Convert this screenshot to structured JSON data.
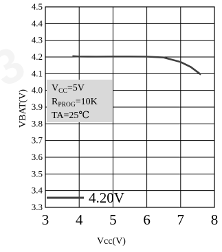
{
  "chart_data": {
    "type": "line",
    "xlabel": "Vcc(V)",
    "ylabel": "VBAT(V)",
    "xlim": [
      3,
      8
    ],
    "ylim": [
      3.3,
      4.5
    ],
    "x_ticks": [
      "3",
      "4",
      "5",
      "6",
      "7",
      "8"
    ],
    "y_ticks": [
      "3.3",
      "3.4",
      "3.5",
      "3.6",
      "3.7",
      "3.8",
      "3.9",
      "4.0",
      "4.1",
      "4.2",
      "4.3",
      "4.4",
      "4.5"
    ],
    "grid": true,
    "series": [
      {
        "name": "4.20V",
        "color": "#404040",
        "x": [
          3.8,
          4.0,
          4.5,
          5.0,
          5.5,
          6.0,
          6.5,
          7.0,
          7.3,
          7.6
        ],
        "y": [
          4.205,
          4.203,
          4.202,
          4.203,
          4.203,
          4.202,
          4.197,
          4.17,
          4.14,
          4.095
        ]
      }
    ],
    "annotation": {
      "line1_main": "V",
      "line1_sub": "CC",
      "line1_rest": "=5V",
      "line2_main": "R",
      "line2_sub": "PROG",
      "line2_rest": "=10K",
      "line3": "TA=25℃"
    },
    "legend": {
      "label": "4.20V",
      "position": "bottom-left"
    }
  }
}
